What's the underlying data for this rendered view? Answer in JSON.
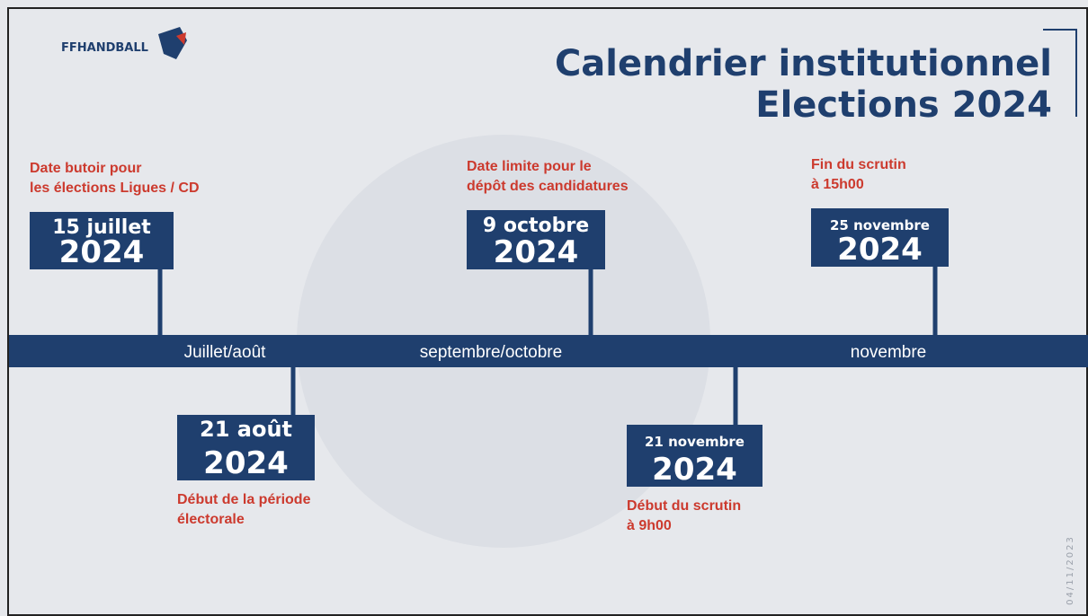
{
  "header": {
    "logo": "FFHANDBALL",
    "title_lines": [
      "Calendrier institutionnel",
      "Elections 2024"
    ]
  },
  "timeline": {
    "periods": [
      "Juillet/août",
      "septembre/octobre",
      "novembre"
    ]
  },
  "events": [
    {
      "day": "15 juillet",
      "year": "2024",
      "caption": [
        "Date butoir pour",
        "les élections Ligues / CD"
      ]
    },
    {
      "day": "21 août",
      "year": "2024",
      "caption": [
        "Début de la période",
        "électorale"
      ]
    },
    {
      "day": "9 octobre",
      "year": "2024",
      "caption": [
        "Date limite pour le",
        "dépôt des candidatures"
      ]
    },
    {
      "day": "21 novembre",
      "year": "2024",
      "caption": [
        "Début du scrutin",
        "à 9h00"
      ]
    },
    {
      "day": "25 novembre",
      "year": "2024",
      "caption": [
        "Fin du scrutin",
        "à 15h00"
      ]
    }
  ],
  "footer": {
    "date": "04/11/2023"
  }
}
